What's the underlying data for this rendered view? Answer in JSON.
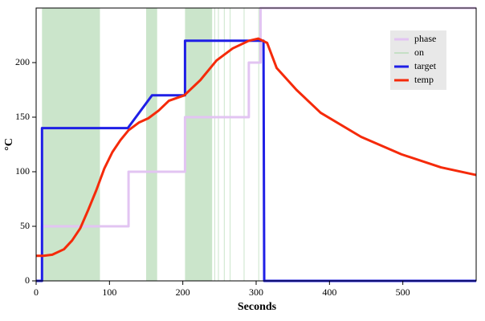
{
  "chart_data": {
    "type": "line",
    "x_label": "Seconds",
    "y_label": "°C",
    "xlim": [
      0,
      600
    ],
    "ylim": [
      0,
      250
    ],
    "xticks": [
      0,
      100,
      200,
      300,
      400,
      500
    ],
    "yticks": [
      0,
      50,
      100,
      150,
      200
    ],
    "legend": "top-right",
    "series": [
      {
        "name": "phase",
        "color": "#e2c4f2",
        "x": [
          0,
          8,
          8,
          126,
          126,
          203,
          203,
          290,
          290,
          306,
          306,
          600
        ],
        "values": [
          0,
          0,
          50,
          50,
          100,
          100,
          150,
          150,
          200,
          200,
          250,
          250
        ]
      },
      {
        "name": "on",
        "color": "#b9dcb9",
        "spans": [
          [
            8,
            87
          ],
          [
            150,
            165
          ],
          [
            203,
            240
          ],
          [
            243,
            244
          ],
          [
            248,
            249
          ],
          [
            256,
            257
          ],
          [
            264,
            265
          ],
          [
            283,
            284
          ],
          [
            303,
            304
          ]
        ]
      },
      {
        "name": "target",
        "color": "#1f1fe6",
        "x": [
          0,
          8,
          8,
          125,
          158,
          203,
          203,
          310,
          311,
          600
        ],
        "values": [
          0,
          0,
          140,
          140,
          170,
          170,
          220,
          220,
          0,
          0
        ]
      },
      {
        "name": "temp",
        "color": "#f52a0a",
        "x": [
          0,
          10,
          22,
          38,
          49,
          60,
          71,
          82,
          93,
          104,
          115,
          126,
          140,
          153,
          167,
          181,
          202,
          224,
          246,
          268,
          290,
          303,
          315,
          328,
          355,
          388,
          443,
          498,
          552,
          600
        ],
        "values": [
          23,
          23,
          24,
          29,
          37,
          48,
          65,
          83,
          103,
          118,
          129,
          138,
          145,
          149,
          156,
          165,
          170,
          184,
          202,
          213,
          220,
          222,
          218,
          195,
          175,
          154,
          132,
          116,
          104,
          97
        ]
      }
    ]
  }
}
